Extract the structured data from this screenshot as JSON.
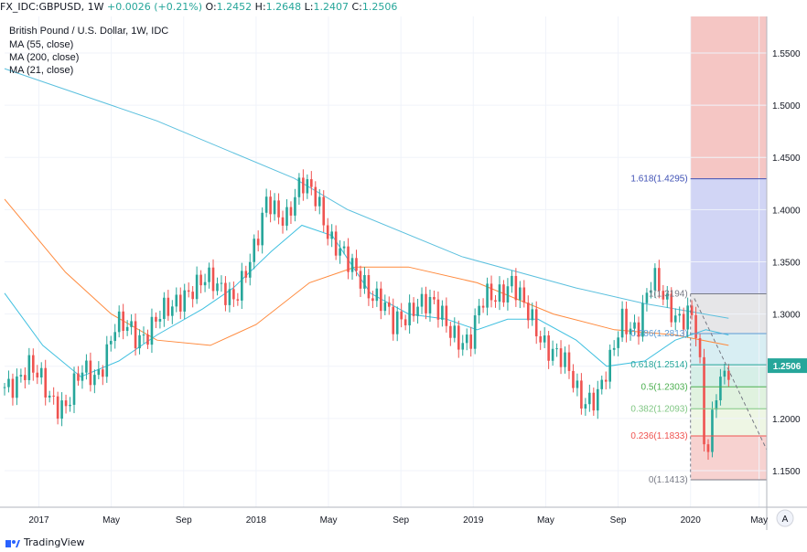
{
  "header": {
    "symbol": "FX_IDC:GBPUSD, 1W",
    "change": "+0.0026 (+0.21%)",
    "open_label": "O:",
    "open_value": "1.2452",
    "high_label": "H:",
    "high_value": "1.2648",
    "low_label": "L:",
    "low_value": "1.2407",
    "close_label": "C:",
    "close_value": "1.2506",
    "last": "1.2506"
  },
  "legend": {
    "title": "British Pound / U.S. Dollar, 1W, IDC",
    "ma55": "MA (55, close)",
    "ma200": "MA (200, close)",
    "ma21": "MA (21, close)"
  },
  "footer": {
    "brand": "TradingView"
  },
  "auto_scale_label": "A",
  "colors": {
    "up": "#26a69a",
    "down": "#ef5350",
    "ma200": "#5bc0de",
    "ma55": "#ff8a3d",
    "ma21": "#40c0e0",
    "fib_top": "#a8a8f0",
    "fib_red": "#ef9a9a"
  },
  "chart_data": {
    "type": "candlestick",
    "title": "British Pound / U.S. Dollar, 1W, IDC",
    "xlabel": "",
    "ylabel": "",
    "ylim": [
      1.115,
      1.585
    ],
    "x_tick_labels": [
      "2017",
      "May",
      "Sep",
      "2018",
      "May",
      "Sep",
      "2019",
      "May",
      "Sep",
      "2020",
      "May"
    ],
    "x_tick_positions": [
      0.045,
      0.14,
      0.235,
      0.33,
      0.425,
      0.52,
      0.615,
      0.71,
      0.805,
      0.9,
      0.99
    ],
    "y_ticks": [
      1.15,
      1.2,
      1.25,
      1.3,
      1.35,
      1.4,
      1.45,
      1.5,
      1.55
    ],
    "y_tick_labels": [
      "1.1500",
      "1.2000",
      "1.2500",
      "1.3000",
      "1.3500",
      "1.4000",
      "1.4500",
      "1.5000",
      "1.5500"
    ],
    "last_price": 1.2506,
    "last_price_label": "1.2506",
    "price_anchors": [
      [
        0,
        1.23
      ],
      [
        0.03,
        1.25
      ],
      [
        0.06,
        1.22
      ],
      [
        0.08,
        1.215
      ],
      [
        0.1,
        1.24
      ],
      [
        0.12,
        1.24
      ],
      [
        0.145,
        1.29
      ],
      [
        0.175,
        1.275
      ],
      [
        0.2,
        1.3
      ],
      [
        0.22,
        1.3
      ],
      [
        0.245,
        1.33
      ],
      [
        0.26,
        1.335
      ],
      [
        0.28,
        1.32
      ],
      [
        0.3,
        1.32
      ],
      [
        0.33,
        1.36
      ],
      [
        0.345,
        1.41
      ],
      [
        0.37,
        1.395
      ],
      [
        0.39,
        1.42
      ],
      [
        0.41,
        1.415
      ],
      [
        0.43,
        1.37
      ],
      [
        0.45,
        1.345
      ],
      [
        0.47,
        1.335
      ],
      [
        0.495,
        1.31
      ],
      [
        0.51,
        1.285
      ],
      [
        0.54,
        1.315
      ],
      [
        0.56,
        1.305
      ],
      [
        0.59,
        1.285
      ],
      [
        0.61,
        1.27
      ],
      [
        0.63,
        1.315
      ],
      [
        0.65,
        1.325
      ],
      [
        0.665,
        1.33
      ],
      [
        0.68,
        1.305
      ],
      [
        0.71,
        1.275
      ],
      [
        0.73,
        1.255
      ],
      [
        0.755,
        1.22
      ],
      [
        0.78,
        1.225
      ],
      [
        0.795,
        1.25
      ],
      [
        0.81,
        1.295
      ],
      [
        0.83,
        1.29
      ],
      [
        0.85,
        1.33
      ],
      [
        0.87,
        1.31
      ],
      [
        0.885,
        1.3
      ],
      [
        0.9,
        1.3
      ],
      [
        0.91,
        1.27
      ],
      [
        0.92,
        1.15
      ],
      [
        0.935,
        1.24
      ],
      [
        0.95,
        1.2506
      ]
    ],
    "ma200": [
      [
        0,
        1.535
      ],
      [
        0.2,
        1.485
      ],
      [
        0.38,
        1.43
      ],
      [
        0.45,
        1.4
      ],
      [
        0.6,
        1.355
      ],
      [
        0.75,
        1.325
      ],
      [
        0.84,
        1.31
      ],
      [
        0.95,
        1.296
      ]
    ],
    "ma55": [
      [
        0,
        1.41
      ],
      [
        0.08,
        1.34
      ],
      [
        0.14,
        1.3
      ],
      [
        0.2,
        1.275
      ],
      [
        0.27,
        1.27
      ],
      [
        0.33,
        1.29
      ],
      [
        0.4,
        1.33
      ],
      [
        0.46,
        1.345
      ],
      [
        0.53,
        1.345
      ],
      [
        0.62,
        1.33
      ],
      [
        0.72,
        1.3
      ],
      [
        0.8,
        1.285
      ],
      [
        0.88,
        1.28
      ],
      [
        0.95,
        1.27
      ]
    ],
    "ma21": [
      [
        0,
        1.32
      ],
      [
        0.05,
        1.27
      ],
      [
        0.1,
        1.24
      ],
      [
        0.15,
        1.255
      ],
      [
        0.2,
        1.28
      ],
      [
        0.26,
        1.305
      ],
      [
        0.3,
        1.325
      ],
      [
        0.35,
        1.36
      ],
      [
        0.39,
        1.385
      ],
      [
        0.43,
        1.375
      ],
      [
        0.48,
        1.32
      ],
      [
        0.53,
        1.3
      ],
      [
        0.58,
        1.295
      ],
      [
        0.62,
        1.285
      ],
      [
        0.66,
        1.295
      ],
      [
        0.7,
        1.295
      ],
      [
        0.75,
        1.275
      ],
      [
        0.79,
        1.25
      ],
      [
        0.84,
        1.255
      ],
      [
        0.88,
        1.275
      ],
      [
        0.92,
        1.285
      ],
      [
        0.95,
        1.28
      ]
    ],
    "fib_levels": [
      {
        "label": "1(1.3194)",
        "price": 1.3194,
        "color": "#787b86"
      },
      {
        "label": "0.786(1.2813)",
        "price": 1.2813,
        "color": "#5b9bd5"
      },
      {
        "label": "0.618(1.2514)",
        "price": 1.2514,
        "color": "#26a69a"
      },
      {
        "label": "0.5(1.2303)",
        "price": 1.2303,
        "color": "#4caf50"
      },
      {
        "label": "0.382(1.2093)",
        "price": 1.2093,
        "color": "#81c784"
      },
      {
        "label": "0.236(1.1833)",
        "price": 1.1833,
        "color": "#ef5350"
      },
      {
        "label": "0(1.1413)",
        "price": 1.1413,
        "color": "#787b86"
      }
    ],
    "fib_extension": {
      "label": "1.618(1.4295)",
      "price": 1.4295,
      "color": "#3f51b5"
    }
  }
}
